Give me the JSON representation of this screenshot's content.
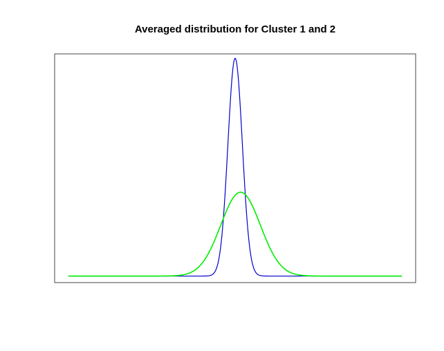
{
  "chart_data": {
    "type": "line",
    "title": "Averaged distribution for Cluster 1 and 2",
    "xlabel": "",
    "ylabel": "",
    "grid": false,
    "legend": "none",
    "axes_visible": false,
    "xlim": [
      -5,
      5
    ],
    "ylim": [
      -0.03,
      1.02
    ],
    "series": [
      {
        "color": "#0000cc",
        "shape": "gaussian",
        "mean": 0.0,
        "sd": 0.2,
        "peak": 1.0
      },
      {
        "color": "#00ee00",
        "shape": "gaussian",
        "mean": 0.15,
        "sd": 0.55,
        "peak": 0.385
      }
    ]
  }
}
